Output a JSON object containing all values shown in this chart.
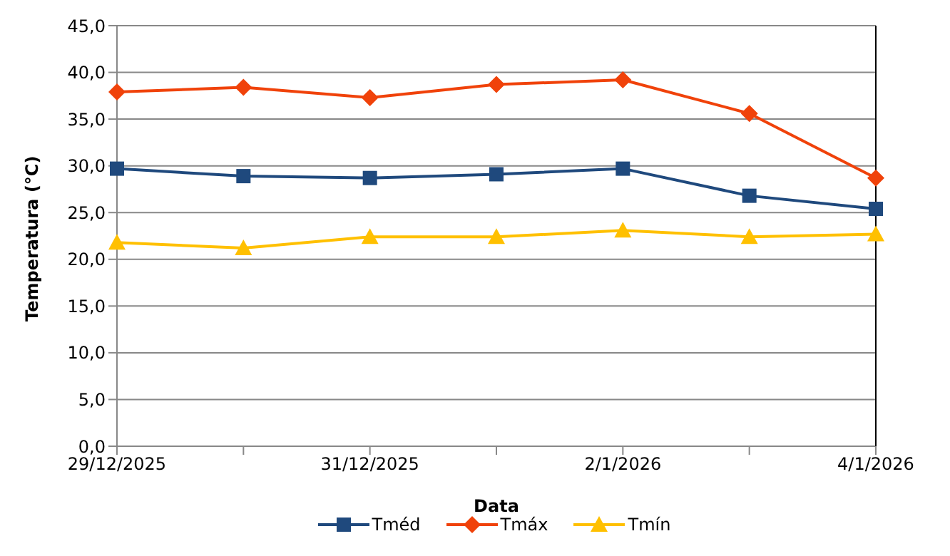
{
  "chart_data": {
    "type": "line",
    "xlabel": "Data",
    "ylabel": "Temperatura (°C)",
    "categories": [
      "29/12/2025",
      null,
      "31/12/2025",
      null,
      "2/1/2026",
      null,
      "4/1/2026"
    ],
    "series": [
      {
        "name": "Tméd",
        "color": "#1f497d",
        "marker": "square",
        "values": [
          29.7,
          28.9,
          28.7,
          29.1,
          29.7,
          26.8,
          25.4
        ]
      },
      {
        "name": "Tmáx",
        "color": "#f0420a",
        "marker": "diamond",
        "values": [
          37.9,
          38.4,
          37.3,
          38.7,
          39.2,
          35.6,
          28.7
        ]
      },
      {
        "name": "Tmín",
        "color": "#ffc000",
        "marker": "triangle",
        "values": [
          21.8,
          21.2,
          22.4,
          22.4,
          23.1,
          22.4,
          22.7
        ]
      }
    ],
    "ylim": [
      0,
      45
    ],
    "yticks": [
      {
        "value": 0,
        "label": "0,0"
      },
      {
        "value": 5,
        "label": "5,0"
      },
      {
        "value": 10,
        "label": "10,0"
      },
      {
        "value": 15,
        "label": "15,0"
      },
      {
        "value": 20,
        "label": "20,0"
      },
      {
        "value": 25,
        "label": "25,0"
      },
      {
        "value": 30,
        "label": "30,0"
      },
      {
        "value": 35,
        "label": "35,0"
      },
      {
        "value": 40,
        "label": "40,0"
      },
      {
        "value": 45,
        "label": "45,0"
      }
    ],
    "grid": "y",
    "legend": "bottom",
    "line_style": "solid"
  }
}
